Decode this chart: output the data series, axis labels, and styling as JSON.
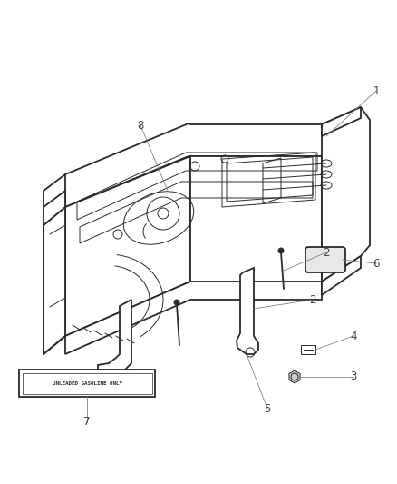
{
  "background_color": "#ffffff",
  "line_color": "#2a2a2a",
  "label_color": "#444444",
  "label_font_size": 8.5,
  "lw_main": 1.3,
  "lw_thin": 0.7,
  "lw_label": 0.55
}
